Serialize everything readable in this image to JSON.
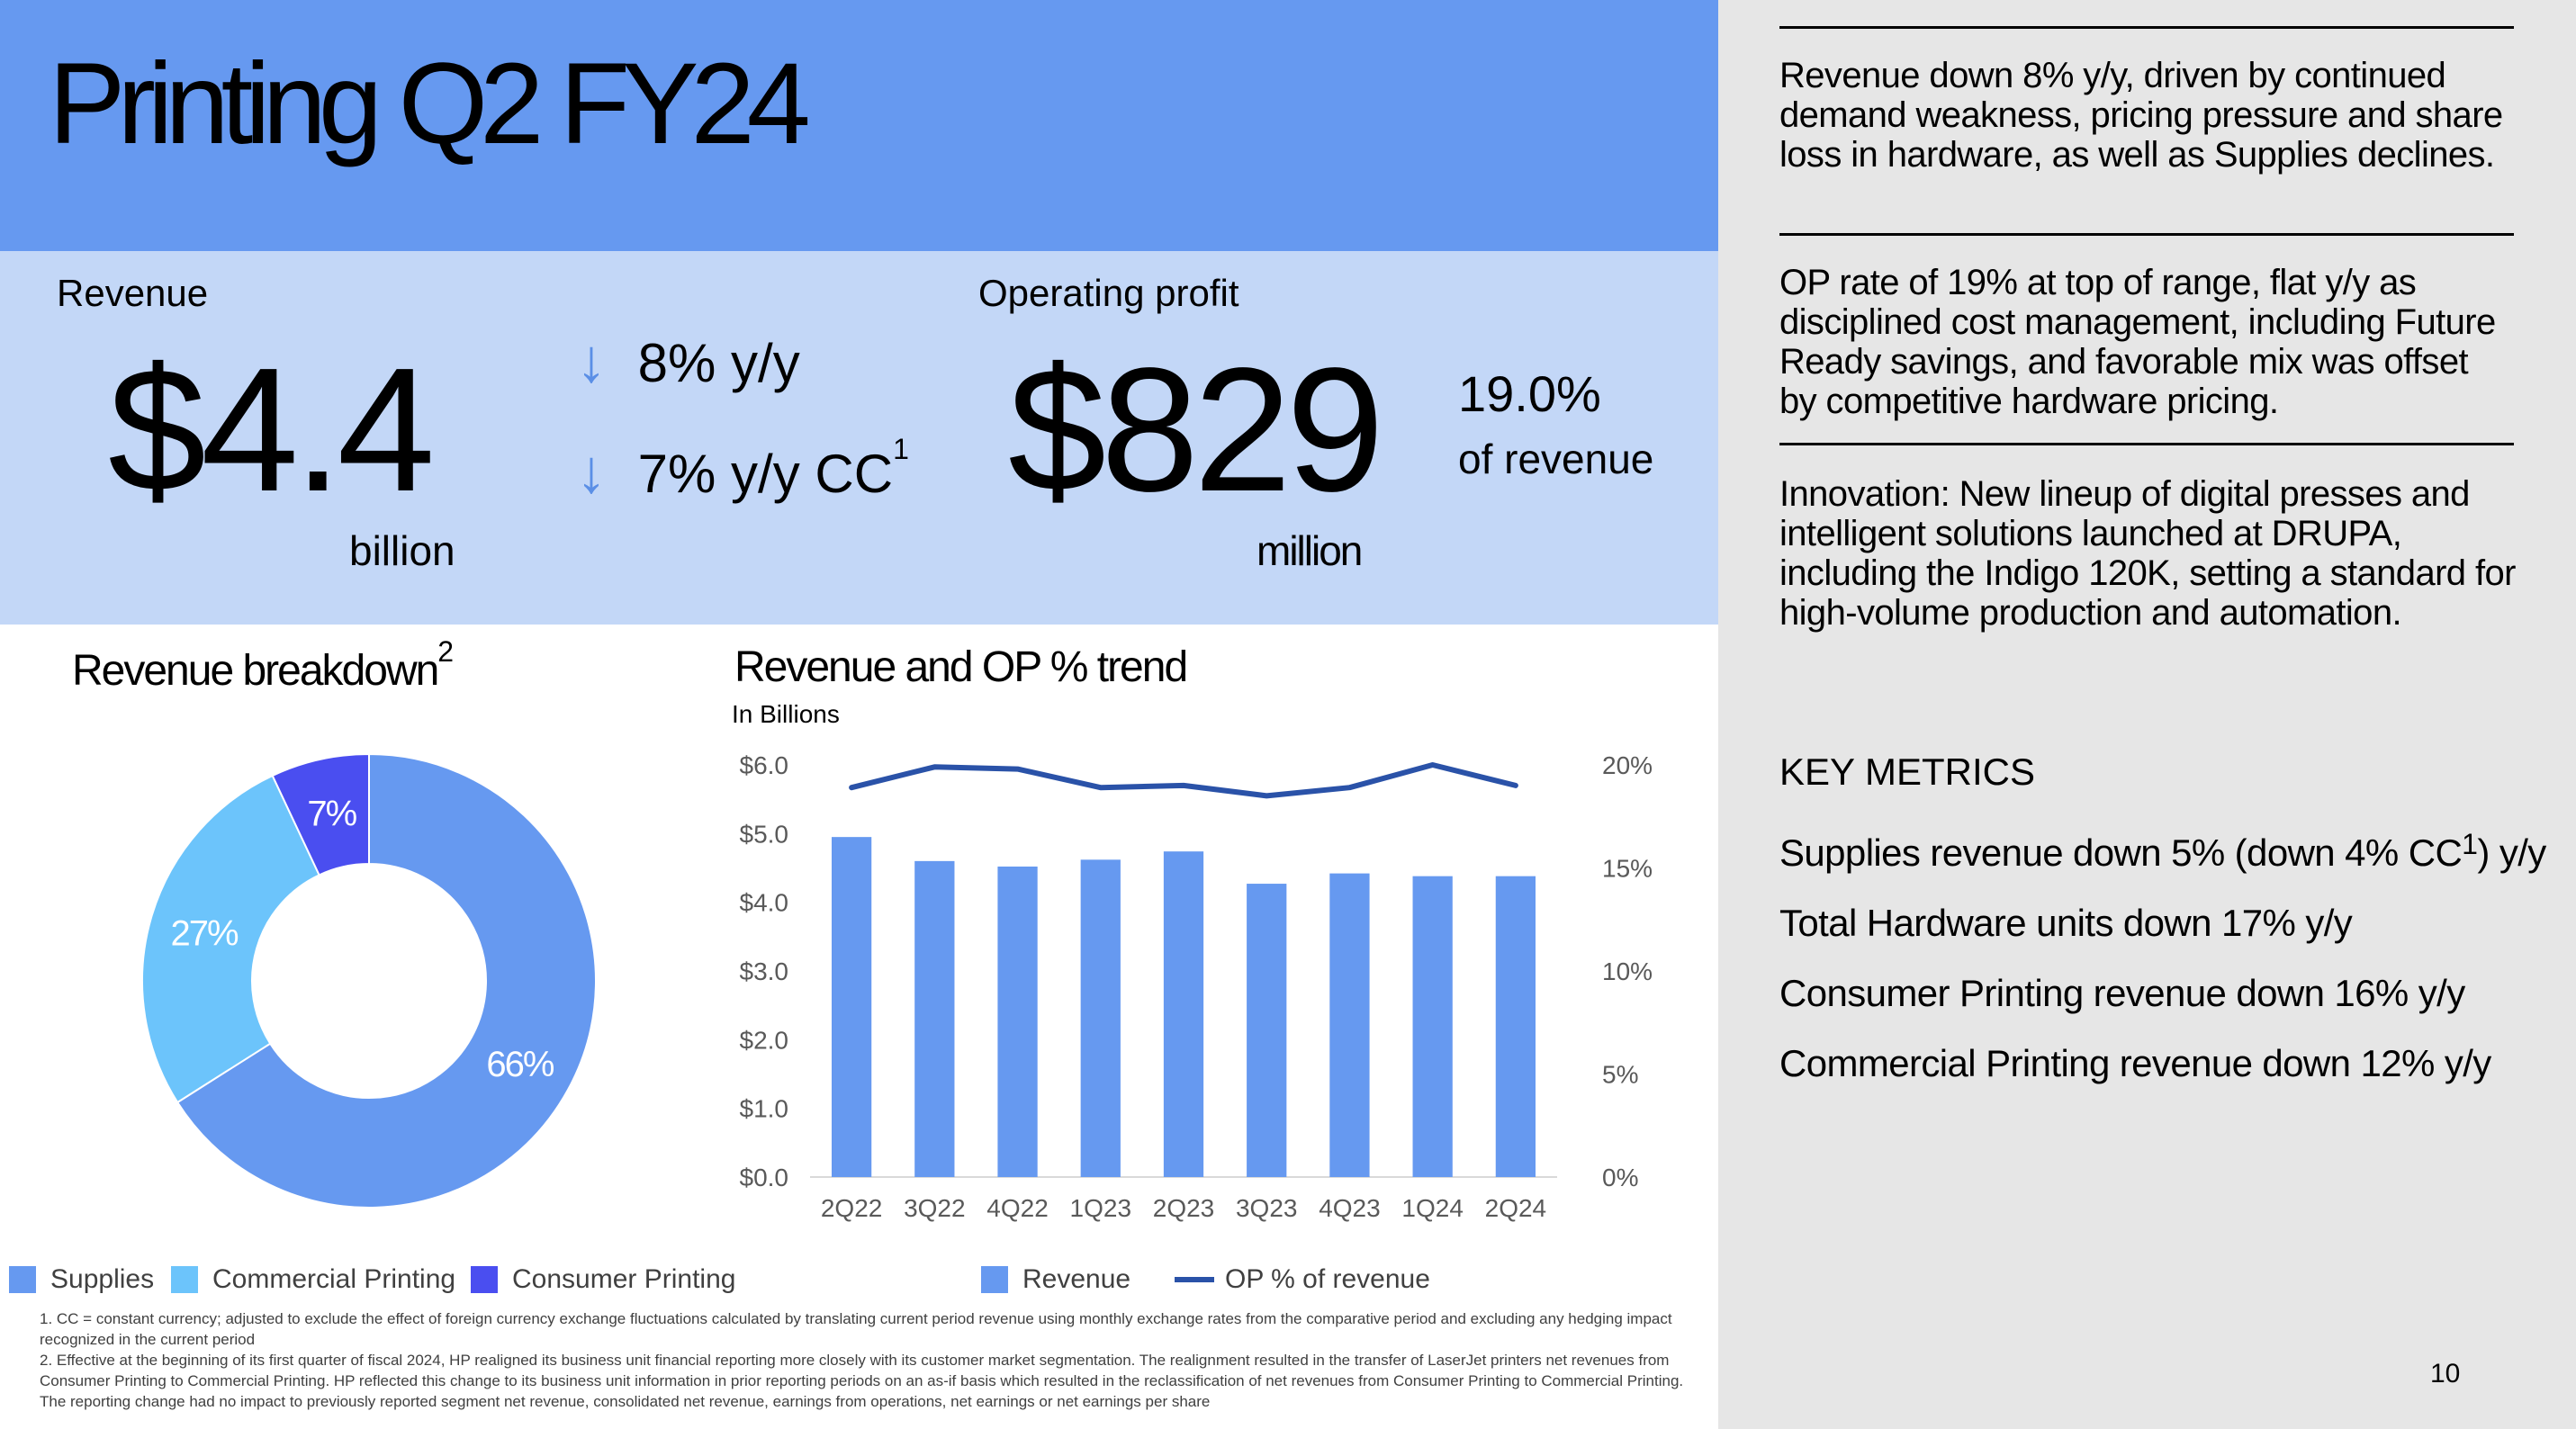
{
  "title": "Printing Q2 FY24",
  "revenue": {
    "label": "Revenue",
    "value": "$4.4",
    "unit": "billion",
    "delta1": "8% y/y",
    "delta2": "7%  y/y CC",
    "delta2_sup": "1"
  },
  "op": {
    "label": "Operating profit",
    "value": "$829",
    "unit": "million",
    "rate": "19.0%",
    "rate_label": "of revenue"
  },
  "breakdown": {
    "title": "Revenue breakdown",
    "title_sup": "2"
  },
  "trend": {
    "title": "Revenue and OP % trend",
    "subtitle": "In Billions"
  },
  "highlights": [
    "Revenue down 8% y/y, driven by continued demand weakness, pricing pressure and share loss in hardware, as well as Supplies declines.",
    "OP rate of 19% at top of range, flat y/y as disciplined cost management, including Future Ready savings, and favorable mix was offset by competitive hardware pricing.",
    "Innovation: New lineup of digital presses and intelligent solutions launched at DRUPA, including the Indigo 120K, setting a standard for high-volume production and automation."
  ],
  "key_metrics": {
    "title": "KEY METRICS",
    "items": {
      "supplies_pre": "Supplies revenue down 5% (down 4% CC",
      "supplies_sup": "1",
      "supplies_post": ") y/y",
      "hardware": "Total Hardware units down 17% y/y",
      "consumer": "Consumer Printing revenue down 16% y/y",
      "commercial": "Commercial Printing revenue down 12% y/y"
    }
  },
  "footnotes": [
    "1.  CC = constant currency; adjusted to exclude the effect of foreign currency exchange fluctuations calculated by translating current period revenue using monthly exchange rates from the comparative period and excluding any hedging impact recognized in the current period",
    "2.  Effective at the beginning of its first quarter of fiscal 2024, HP realigned its business unit financial reporting more closely with its customer market segmentation. The realignment resulted in the transfer of LaserJet printers net revenues from Consumer Printing to Commercial Printing. HP reflected this change to its business unit information in prior reporting periods on an as-if basis which resulted in the reclassification of net revenues from Consumer Printing to Commercial Printing. The reporting change had no impact to previously reported segment net revenue, consolidated net revenue, earnings from operations, net earnings or net earnings per share"
  ],
  "page_number": "10",
  "colors": {
    "title_band": "#6699f0",
    "kpi_band": "#c3d7f7",
    "right_panel": "#e6e6e6",
    "supplies": "#6699f0",
    "commercial": "#6cc4fb",
    "consumer": "#4a4ef0",
    "revenue_bar": "#6699f0",
    "op_line": "#2a52a8"
  },
  "chart_data": [
    {
      "type": "pie",
      "variant": "donut",
      "labels": [
        "Supplies",
        "Commercial Printing",
        "Consumer Printing"
      ],
      "values": [
        66,
        27,
        7
      ],
      "value_labels": [
        "66%",
        "27%",
        "7%"
      ],
      "colors": [
        "#6699f0",
        "#6cc4fb",
        "#4a4ef0"
      ],
      "legend": "bottom"
    },
    {
      "type": "bar",
      "categories": [
        "2Q22",
        "3Q22",
        "4Q22",
        "1Q23",
        "2Q23",
        "3Q23",
        "4Q23",
        "1Q24",
        "2Q24"
      ],
      "series": [
        {
          "name": "Revenue",
          "type": "bar",
          "axis": "left",
          "values": [
            4.95,
            4.6,
            4.52,
            4.62,
            4.74,
            4.27,
            4.42,
            4.38,
            4.38
          ]
        },
        {
          "name": "OP % of revenue",
          "type": "line",
          "axis": "right",
          "values": [
            18.9,
            19.9,
            19.8,
            18.9,
            19.0,
            18.5,
            18.9,
            20.0,
            19.0
          ]
        }
      ],
      "ylim_left": [
        0,
        6
      ],
      "yticks_left": [
        "$0.0",
        "$1.0",
        "$2.0",
        "$3.0",
        "$4.0",
        "$5.0",
        "$6.0"
      ],
      "ylim_right": [
        0,
        20
      ],
      "yticks_right": [
        "0%",
        "5%",
        "10%",
        "15%",
        "20%"
      ],
      "grid": false,
      "legend": "bottom"
    }
  ]
}
